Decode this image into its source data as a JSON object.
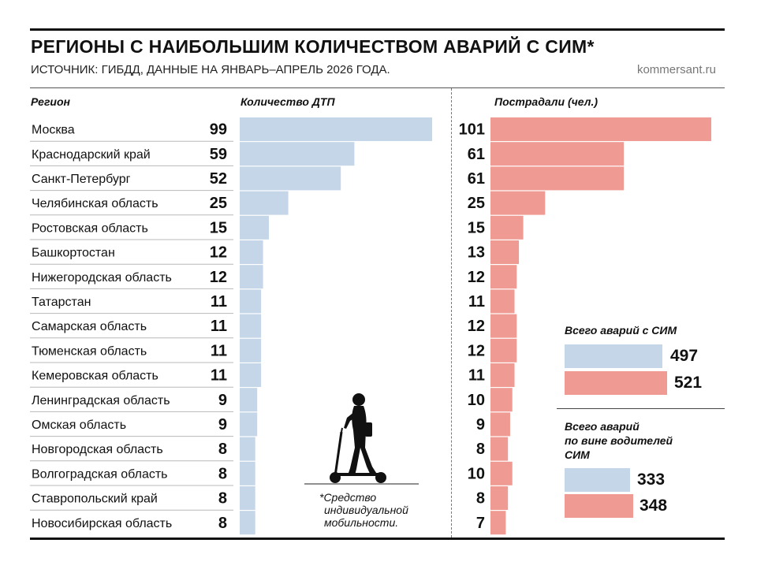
{
  "header": {
    "title": "РЕГИОНЫ С НАИБОЛЬШИМ КОЛИЧЕСТВОМ АВАРИЙ С СИМ*",
    "subtitle": "ИСТОЧНИК: ГИБДД, ДАННЫЕ НА ЯНВАРЬ–АПРЕЛЬ 2026 ГОДА.",
    "source": "kommersant.ru"
  },
  "columns": {
    "region": "Регион",
    "accidents": "Количество ДТП",
    "injured": "Пострадали (чел.)"
  },
  "colors": {
    "accidents": "#c5d6e8",
    "injured": "#ef9a93",
    "row_divider": "#b8b8b8"
  },
  "icon": "electric-scooter-rider-icon",
  "chart_data": {
    "type": "bar",
    "categories": [
      "Москва",
      "Краснодарский край",
      "Санкт-Петербург",
      "Челябинская область",
      "Ростовская область",
      "Башкортостан",
      "Нижегородская область",
      "Татарстан",
      "Самарская область",
      "Тюменская область",
      "Кемеровская область",
      "Ленинградская область",
      "Омская область",
      "Новгородская область",
      "Волгоградская область",
      "Ставропольский край",
      "Новосибирская область"
    ],
    "series": [
      {
        "name": "Количество ДТП",
        "values": [
          99,
          59,
          52,
          25,
          15,
          12,
          12,
          11,
          11,
          11,
          11,
          9,
          9,
          8,
          8,
          8,
          8
        ]
      },
      {
        "name": "Пострадали (чел.)",
        "values": [
          101,
          61,
          61,
          25,
          15,
          13,
          12,
          11,
          12,
          12,
          11,
          10,
          9,
          8,
          10,
          8,
          7
        ]
      }
    ],
    "orientation": "horizontal",
    "grid": false
  },
  "totals": {
    "all": {
      "label": "Всего аварий с СИМ",
      "accidents": 497,
      "injured": 521
    },
    "drivers_fault": {
      "label_lines": [
        "Всего аварий",
        "по вине водителей",
        "СИМ"
      ],
      "accidents": 333,
      "injured": 348
    }
  },
  "footnote": {
    "lines": [
      "*Средство",
      "индивидуальной",
      "мобильности."
    ]
  }
}
